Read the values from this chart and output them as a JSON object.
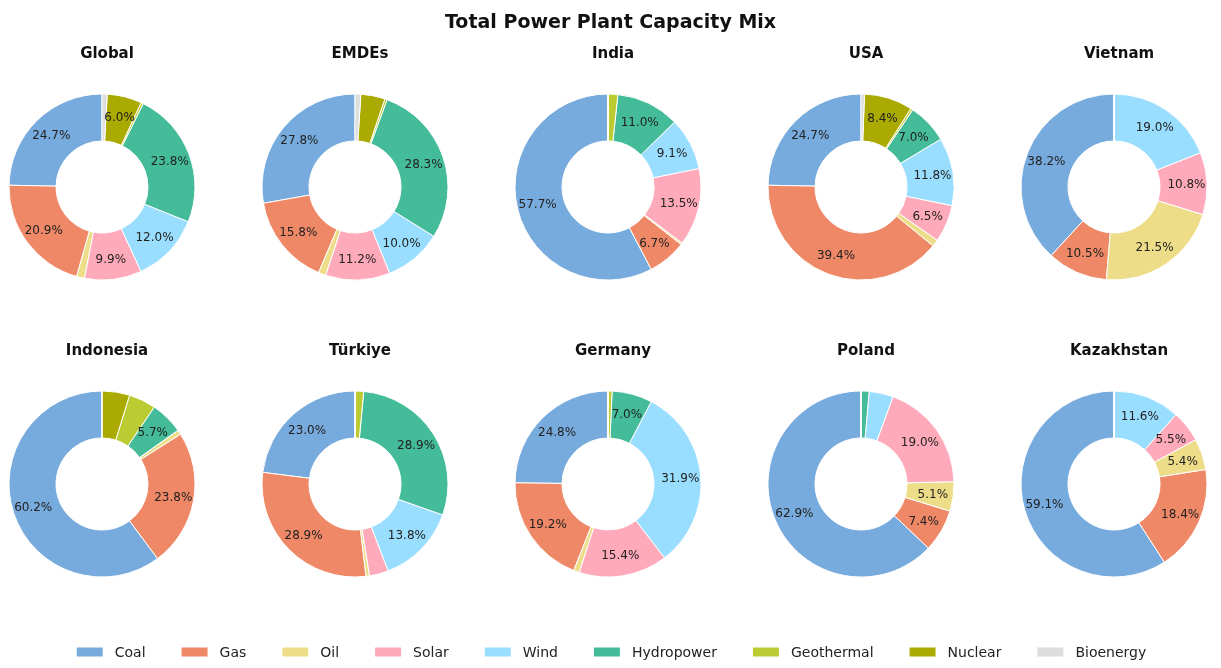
{
  "chart_data": {
    "type": "donut",
    "title": "Total Power Plant Capacity Mix",
    "legend": "bottom",
    "categories": [
      "Coal",
      "Gas",
      "Oil",
      "Solar",
      "Wind",
      "Hydropower",
      "Geothermal",
      "Nuclear",
      "Bioenergy"
    ],
    "colors": [
      "#77aadd",
      "#ee8866",
      "#eedd88",
      "#ffaabb",
      "#99ddff",
      "#44bb99",
      "#bbcc33",
      "#aaaa00",
      "#dddddd"
    ],
    "series": [
      {
        "name": "Global",
        "values": [
          24.7,
          20.9,
          1.4,
          9.9,
          12.0,
          23.8,
          0.4,
          6.0,
          0.9
        ],
        "value_labels": [
          "24.7%",
          "20.9%",
          null,
          "9.9%",
          "12.0%",
          "23.8%",
          null,
          "6.0%",
          null
        ]
      },
      {
        "name": "EMDEs",
        "values": [
          27.8,
          15.8,
          1.3,
          11.2,
          10.0,
          28.3,
          0.4,
          4.2,
          1.0
        ],
        "value_labels": [
          "27.8%",
          "15.8%",
          null,
          "11.2%",
          "10.0%",
          "28.3%",
          null,
          null,
          null
        ]
      },
      {
        "name": "India",
        "values": [
          57.7,
          6.7,
          0.3,
          13.5,
          9.1,
          11.0,
          1.7,
          0,
          0
        ],
        "value_labels": [
          "57.7%",
          "6.7%",
          null,
          "13.5%",
          "9.1%",
          "11.0%",
          null,
          null,
          null
        ]
      },
      {
        "name": "USA",
        "values": [
          24.7,
          39.4,
          1.2,
          6.5,
          11.8,
          7.0,
          0.4,
          8.4,
          0.6
        ],
        "value_labels": [
          "24.7%",
          "39.4%",
          null,
          "6.5%",
          "11.8%",
          "7.0%",
          null,
          "8.4%",
          null
        ]
      },
      {
        "name": "Vietnam",
        "values": [
          38.2,
          10.5,
          21.5,
          10.8,
          19.0,
          0,
          0,
          0,
          0
        ],
        "value_labels": [
          "38.2%",
          "10.5%",
          "21.5%",
          "10.8%",
          "19.0%",
          null,
          null,
          null,
          null
        ]
      },
      {
        "name": "Indonesia",
        "values": [
          60.2,
          23.8,
          0.8,
          0,
          0,
          5.7,
          4.7,
          4.8,
          0
        ],
        "value_labels": [
          "60.2%",
          "23.8%",
          null,
          null,
          null,
          "5.7%",
          null,
          null,
          null
        ]
      },
      {
        "name": "Türkiye",
        "values": [
          23.0,
          28.9,
          0.6,
          3.3,
          13.8,
          28.9,
          1.5,
          0,
          0
        ],
        "value_labels": [
          "23.0%",
          "28.9%",
          null,
          null,
          "13.8%",
          "28.9%",
          null,
          null,
          null
        ]
      },
      {
        "name": "Germany",
        "values": [
          24.8,
          19.2,
          1.0,
          15.4,
          31.9,
          7.0,
          0.7,
          0,
          0
        ],
        "value_labels": [
          "24.8%",
          "19.2%",
          null,
          "15.4%",
          "31.9%",
          "7.0%",
          null,
          null,
          null
        ]
      },
      {
        "name": "Poland",
        "values": [
          62.9,
          7.4,
          5.1,
          19.0,
          4.2,
          1.4,
          0,
          0,
          0
        ],
        "value_labels": [
          "62.9%",
          "7.4%",
          "5.1%",
          "19.0%",
          null,
          null,
          null,
          null,
          null
        ]
      },
      {
        "name": "Kazakhstan",
        "values": [
          59.1,
          18.4,
          5.4,
          5.5,
          11.6,
          0,
          0,
          0,
          0
        ],
        "value_labels": [
          "59.1%",
          "18.4%",
          "5.4%",
          "5.5%",
          "11.6%",
          null,
          null,
          null,
          null
        ]
      }
    ]
  }
}
